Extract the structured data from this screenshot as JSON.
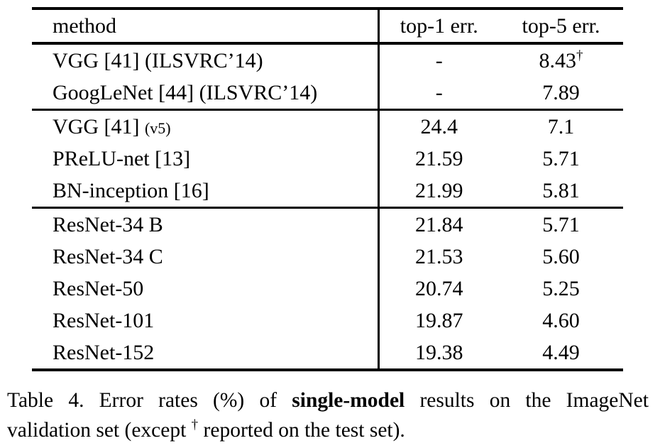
{
  "table": {
    "header": {
      "method": "method",
      "top1": "top-1 err.",
      "top5": "top-5 err."
    },
    "rows": [
      {
        "method": "VGG [41] (ILSVRC’14)",
        "top1": "-",
        "top5": "8.43",
        "top5_sup": "†"
      },
      {
        "method": "GoogLeNet [44] (ILSVRC’14)",
        "top1": "-",
        "top5": "7.89"
      },
      {
        "method": "VGG [41] ",
        "method_small": "(v5)",
        "top1": "24.4",
        "top5": "7.1"
      },
      {
        "method": "PReLU-net [13]",
        "top1": "21.59",
        "top5": "5.71"
      },
      {
        "method": "BN-inception [16]",
        "top1": "21.99",
        "top5": "5.81"
      },
      {
        "method": "ResNet-34 B",
        "top1": "21.84",
        "top5": "5.71"
      },
      {
        "method": "ResNet-34 C",
        "top1": "21.53",
        "top5": "5.60"
      },
      {
        "method": "ResNet-50",
        "top1": "20.74",
        "top5": "5.25"
      },
      {
        "method": "ResNet-101",
        "top1": "19.87",
        "top5": "4.60"
      },
      {
        "method": "ResNet-152",
        "top1": "19.38",
        "top5": "4.49"
      }
    ]
  },
  "caption": {
    "l1_pre": "Table 4. Error rates (%) of ",
    "l1_bold": "single-model",
    "l1_post": " results on the ImageNet",
    "l2_pre": "validation set (except ",
    "l2_sup": "†",
    "l2_post": " reported on the test set)."
  },
  "colors": {
    "text": "#000000",
    "background": "#ffffff",
    "rule": "#000000"
  }
}
